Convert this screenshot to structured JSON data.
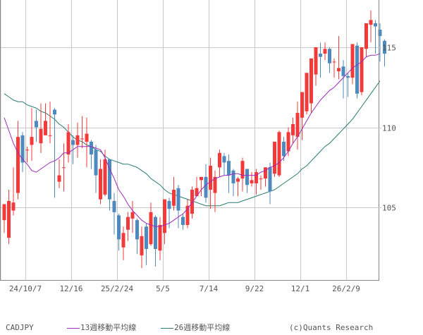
{
  "chart_data": {
    "type": "candlestick",
    "title": "CADJPY",
    "symbol": "CADJPY",
    "xlabel": "",
    "ylabel": "",
    "ylim": [
      100.7,
      118.2
    ],
    "y_ticks": [
      105,
      110,
      115
    ],
    "x_tick_labels": [
      "24/10/7",
      "12/16",
      "25/2/24",
      "5/5",
      "7/14",
      "9/22",
      "12/1",
      "26/2/9"
    ],
    "x_tick_candle_index": [
      4,
      14,
      24,
      34,
      44,
      54,
      64,
      74
    ],
    "grid": true,
    "up_color": "#f23a3a",
    "down_color": "#4f8abf",
    "candles": [
      {
        "o": 104.2,
        "h": 104.8,
        "l": 103.4,
        "c": 105.2
      },
      {
        "o": 103.1,
        "h": 106.1,
        "l": 102.7,
        "c": 105.4
      },
      {
        "o": 104.8,
        "h": 107.5,
        "l": 104.5,
        "c": 105.3
      },
      {
        "o": 105.9,
        "h": 110.4,
        "l": 105.5,
        "c": 109.4
      },
      {
        "o": 109.5,
        "h": 109.7,
        "l": 107.2,
        "c": 107.8
      },
      {
        "o": 108.6,
        "h": 108.8,
        "l": 107.8,
        "c": 108.6
      },
      {
        "o": 108.9,
        "h": 111.2,
        "l": 107.9,
        "c": 109.4
      },
      {
        "o": 110.4,
        "h": 111.1,
        "l": 109.1,
        "c": 110.0
      },
      {
        "o": 109.0,
        "h": 111.5,
        "l": 108.4,
        "c": 109.9
      },
      {
        "o": 109.5,
        "h": 111.5,
        "l": 109.5,
        "c": 110.4
      },
      {
        "o": 109.5,
        "h": 111.6,
        "l": 109.0,
        "c": 109.5
      },
      {
        "o": 111.1,
        "h": 111.2,
        "l": 105.6,
        "c": 110.8
      },
      {
        "o": 106.6,
        "h": 108.0,
        "l": 106.2,
        "c": 107.0
      },
      {
        "o": 107.5,
        "h": 109.0,
        "l": 106.0,
        "c": 107.5
      },
      {
        "o": 108.3,
        "h": 110.2,
        "l": 107.8,
        "c": 109.7
      },
      {
        "o": 109.2,
        "h": 109.5,
        "l": 107.7,
        "c": 108.9
      },
      {
        "o": 108.9,
        "h": 110.3,
        "l": 108.1,
        "c": 109.5
      },
      {
        "o": 109.3,
        "h": 110.7,
        "l": 108.7,
        "c": 109.3
      },
      {
        "o": 109.1,
        "h": 110.6,
        "l": 107.5,
        "c": 109.6
      },
      {
        "o": 109.1,
        "h": 109.2,
        "l": 107.4,
        "c": 108.3
      },
      {
        "o": 108.6,
        "h": 108.9,
        "l": 105.9,
        "c": 107.0
      },
      {
        "o": 105.5,
        "h": 108.0,
        "l": 105.2,
        "c": 107.4
      },
      {
        "o": 105.8,
        "h": 108.6,
        "l": 105.7,
        "c": 108.0
      },
      {
        "o": 108.0,
        "h": 108.0,
        "l": 104.8,
        "c": 105.5
      },
      {
        "o": 105.4,
        "h": 105.9,
        "l": 103.3,
        "c": 104.7
      },
      {
        "o": 104.5,
        "h": 104.6,
        "l": 102.3,
        "c": 103.0
      },
      {
        "o": 102.5,
        "h": 103.8,
        "l": 101.7,
        "c": 103.4
      },
      {
        "o": 103.6,
        "h": 104.7,
        "l": 102.9,
        "c": 104.4
      },
      {
        "o": 104.3,
        "h": 105.4,
        "l": 103.4,
        "c": 104.7
      },
      {
        "o": 104.2,
        "h": 104.3,
        "l": 102.1,
        "c": 103.0
      },
      {
        "o": 102.0,
        "h": 103.8,
        "l": 101.2,
        "c": 103.2
      },
      {
        "o": 103.8,
        "h": 104.0,
        "l": 101.4,
        "c": 102.4
      },
      {
        "o": 102.7,
        "h": 105.3,
        "l": 102.6,
        "c": 104.7
      },
      {
        "o": 104.4,
        "h": 104.5,
        "l": 101.3,
        "c": 102.4
      },
      {
        "o": 102.3,
        "h": 104.4,
        "l": 101.7,
        "c": 103.9
      },
      {
        "o": 103.4,
        "h": 104.7,
        "l": 102.7,
        "c": 105.5
      },
      {
        "o": 105.4,
        "h": 105.6,
        "l": 103.7,
        "c": 104.9
      },
      {
        "o": 105.1,
        "h": 106.9,
        "l": 104.8,
        "c": 106.1
      },
      {
        "o": 106.2,
        "h": 106.4,
        "l": 103.7,
        "c": 104.8
      },
      {
        "o": 104.4,
        "h": 104.6,
        "l": 103.6,
        "c": 103.9
      },
      {
        "o": 103.9,
        "h": 105.5,
        "l": 103.7,
        "c": 105.1
      },
      {
        "o": 104.6,
        "h": 106.3,
        "l": 104.3,
        "c": 106.1
      },
      {
        "o": 105.7,
        "h": 106.9,
        "l": 105.7,
        "c": 106.2
      },
      {
        "o": 106.7,
        "h": 106.7,
        "l": 105.7,
        "c": 106.9
      },
      {
        "o": 106.9,
        "h": 107.7,
        "l": 105.3,
        "c": 105.6
      },
      {
        "o": 106.1,
        "h": 108.1,
        "l": 104.9,
        "c": 107.6
      },
      {
        "o": 105.9,
        "h": 107.3,
        "l": 104.7,
        "c": 106.9
      },
      {
        "o": 107.5,
        "h": 108.6,
        "l": 106.9,
        "c": 108.4
      },
      {
        "o": 108.2,
        "h": 108.4,
        "l": 107.0,
        "c": 107.8
      },
      {
        "o": 107.9,
        "h": 108.3,
        "l": 105.9,
        "c": 107.0
      },
      {
        "o": 107.3,
        "h": 107.4,
        "l": 105.7,
        "c": 106.5
      },
      {
        "o": 106.6,
        "h": 106.9,
        "l": 105.7,
        "c": 106.8
      },
      {
        "o": 106.8,
        "h": 108.1,
        "l": 106.0,
        "c": 107.9
      },
      {
        "o": 107.4,
        "h": 107.4,
        "l": 105.9,
        "c": 106.4
      },
      {
        "o": 106.5,
        "h": 107.2,
        "l": 106.3,
        "c": 106.7
      },
      {
        "o": 106.5,
        "h": 107.4,
        "l": 105.8,
        "c": 107.2
      },
      {
        "o": 106.8,
        "h": 107.0,
        "l": 106.1,
        "c": 106.8
      },
      {
        "o": 106.8,
        "h": 107.3,
        "l": 106.3,
        "c": 107.5
      },
      {
        "o": 107.5,
        "h": 107.8,
        "l": 105.2,
        "c": 106.0
      },
      {
        "o": 107.1,
        "h": 108.1,
        "l": 106.9,
        "c": 109.1
      },
      {
        "o": 107.0,
        "h": 109.8,
        "l": 106.9,
        "c": 109.7
      },
      {
        "o": 109.1,
        "h": 109.4,
        "l": 107.9,
        "c": 108.2
      },
      {
        "o": 108.5,
        "h": 110.0,
        "l": 108.2,
        "c": 109.7
      },
      {
        "o": 109.5,
        "h": 110.6,
        "l": 109.0,
        "c": 110.2
      },
      {
        "o": 109.4,
        "h": 111.6,
        "l": 108.6,
        "c": 110.9
      },
      {
        "o": 110.6,
        "h": 111.2,
        "l": 109.2,
        "c": 112.2
      },
      {
        "o": 111.0,
        "h": 113.0,
        "l": 110.8,
        "c": 113.4
      },
      {
        "o": 111.5,
        "h": 113.8,
        "l": 110.9,
        "c": 114.3
      },
      {
        "o": 113.3,
        "h": 115.0,
        "l": 112.6,
        "c": 115.0
      },
      {
        "o": 114.6,
        "h": 115.3,
        "l": 113.1,
        "c": 114.4
      },
      {
        "o": 114.6,
        "h": 115.3,
        "l": 114.2,
        "c": 114.9
      },
      {
        "o": 114.9,
        "h": 115.0,
        "l": 113.4,
        "c": 114.0
      },
      {
        "o": 114.1,
        "h": 114.3,
        "l": 113.1,
        "c": 114.1
      },
      {
        "o": 113.5,
        "h": 115.7,
        "l": 113.0,
        "c": 113.7
      },
      {
        "o": 113.8,
        "h": 114.2,
        "l": 111.8,
        "c": 113.2
      },
      {
        "o": 113.2,
        "h": 113.4,
        "l": 111.9,
        "c": 113.1
      },
      {
        "o": 113.1,
        "h": 114.0,
        "l": 112.7,
        "c": 115.2
      },
      {
        "o": 115.1,
        "h": 115.3,
        "l": 111.8,
        "c": 112.1
      },
      {
        "o": 112.2,
        "h": 114.8,
        "l": 112.0,
        "c": 115.0
      },
      {
        "o": 114.9,
        "h": 115.4,
        "l": 114.4,
        "c": 116.5
      },
      {
        "o": 116.4,
        "h": 117.3,
        "l": 115.3,
        "c": 116.7
      },
      {
        "o": 116.5,
        "h": 116.7,
        "l": 114.6,
        "c": 116.3
      },
      {
        "o": 116.1,
        "h": 116.5,
        "l": 114.1,
        "c": 115.7
      },
      {
        "o": 115.4,
        "h": 115.5,
        "l": 113.8,
        "c": 114.6
      }
    ],
    "series": [
      {
        "name": "13週移動平均線",
        "color": "#9b2ab8",
        "values": [
          110.6,
          109.8,
          109.0,
          108.4,
          108.0,
          107.7,
          107.3,
          107.2,
          107.4,
          107.6,
          107.8,
          107.9,
          108.1,
          108.4,
          108.4,
          108.6,
          108.8,
          108.8,
          108.8,
          108.8,
          108.7,
          108.6,
          108.1,
          107.4,
          106.8,
          106.1,
          105.7,
          105.2,
          104.8,
          104.5,
          104.2,
          104.0,
          103.9,
          103.8,
          103.8,
          103.9,
          104.0,
          104.2,
          104.4,
          104.6,
          104.9,
          105.3,
          105.7,
          106.1,
          106.4,
          106.6,
          106.8,
          106.9,
          107.0,
          107.0,
          107.1,
          107.1,
          107.0,
          107.0,
          107.0,
          107.0,
          107.2,
          107.3,
          107.5,
          107.6,
          107.8,
          108.1,
          108.5,
          109.0,
          109.4,
          109.9,
          110.4,
          110.9,
          111.3,
          111.7,
          112.0,
          112.3,
          112.5,
          112.8,
          113.1,
          113.4,
          113.7,
          113.9,
          114.1,
          114.4,
          114.5,
          114.5,
          114.6
        ]
      },
      {
        "name": "26週移動平均線",
        "color": "#2a7a70",
        "values": [
          112.1,
          111.9,
          111.7,
          111.6,
          111.6,
          111.4,
          111.3,
          111.2,
          111.0,
          110.9,
          110.7,
          110.5,
          110.2,
          110.0,
          109.7,
          109.4,
          109.2,
          109.1,
          108.9,
          108.8,
          108.6,
          108.5,
          108.2,
          108.0,
          107.9,
          107.8,
          107.7,
          107.7,
          107.6,
          107.5,
          107.3,
          107.1,
          106.8,
          106.6,
          106.4,
          106.1,
          105.9,
          105.8,
          105.7,
          105.6,
          105.5,
          105.4,
          105.3,
          105.2,
          105.1,
          105.1,
          105.1,
          105.1,
          105.2,
          105.3,
          105.3,
          105.3,
          105.4,
          105.5,
          105.6,
          105.7,
          105.8,
          105.9,
          106.0,
          106.1,
          106.3,
          106.5,
          106.7,
          106.9,
          107.1,
          107.4,
          107.6,
          107.9,
          108.2,
          108.5,
          108.8,
          109.0,
          109.3,
          109.6,
          109.9,
          110.2,
          110.5,
          110.9,
          111.3,
          111.7,
          112.1,
          112.5,
          112.9
        ]
      }
    ]
  },
  "legend": {
    "symbol": "CADJPY",
    "ma13_label": "13週移動平均線",
    "ma26_label": "26週移動平均線",
    "copyright": "(c)Quants Research"
  },
  "colors": {
    "up": "#f23a3a",
    "down": "#4f8abf",
    "ma13": "#9b2ab8",
    "ma26": "#2a7a70",
    "grid": "#c8c8c8",
    "frame": "#888888",
    "text": "#555555"
  }
}
